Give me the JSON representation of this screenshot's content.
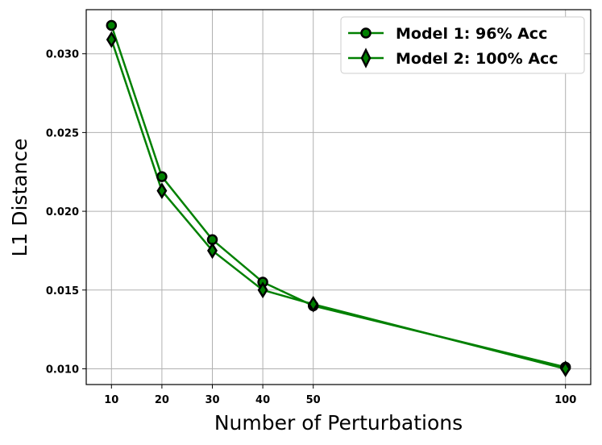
{
  "chart_data": {
    "type": "line",
    "xlabel": "Number of Perturbations",
    "ylabel": "L1 Distance",
    "x": [
      10,
      20,
      30,
      40,
      50,
      100
    ],
    "xticks": [
      "10",
      "20",
      "30",
      "40",
      "50",
      "100"
    ],
    "yticks": [
      "0.010",
      "0.015",
      "0.020",
      "0.025",
      "0.030"
    ],
    "xlim": [
      5,
      105
    ],
    "ylim": [
      0.009,
      0.0328
    ],
    "grid": true,
    "legend_position": "top-right",
    "series": [
      {
        "name": "Model 1: 96% Acc",
        "marker": "circle",
        "color": "#008000",
        "values": [
          0.0318,
          0.0222,
          0.0182,
          0.0155,
          0.014,
          0.0101
        ]
      },
      {
        "name": "Model 2: 100% Acc",
        "marker": "diamond",
        "color": "#008000",
        "values": [
          0.0309,
          0.0213,
          0.0175,
          0.015,
          0.0141,
          0.01
        ]
      }
    ]
  }
}
